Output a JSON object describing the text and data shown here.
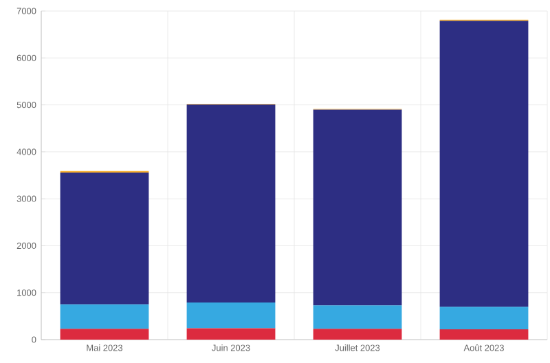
{
  "chart_data": {
    "type": "bar",
    "stacked": true,
    "categories": [
      "Mai 2023",
      "Juin 2023",
      "Juillet 2023",
      "Août 2023"
    ],
    "series": [
      {
        "color": "#dc2b3f",
        "values": [
          230,
          240,
          230,
          220
        ]
      },
      {
        "color": "#36a9e1",
        "values": [
          520,
          550,
          500,
          480
        ]
      },
      {
        "color": "#2d2e83",
        "values": [
          2810,
          4220,
          4170,
          6090
        ]
      },
      {
        "color": "#f9b233",
        "values": [
          30,
          10,
          15,
          25
        ]
      }
    ],
    "ylim": [
      0,
      7000
    ],
    "yticks": [
      0,
      1000,
      2000,
      3000,
      4000,
      5000,
      6000,
      7000
    ],
    "grid": true
  }
}
